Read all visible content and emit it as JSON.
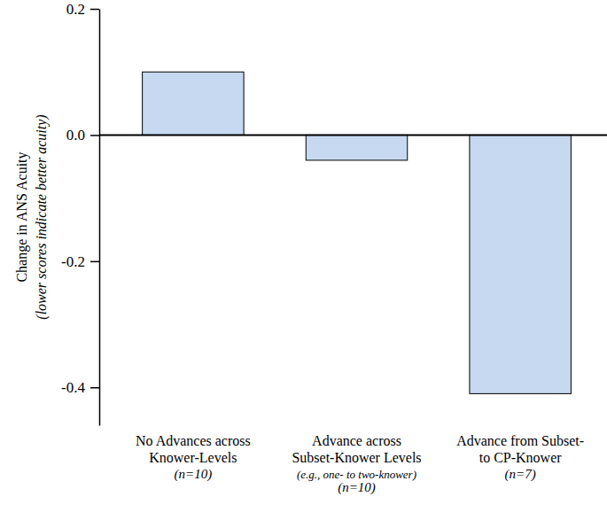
{
  "chart_data": {
    "type": "bar",
    "y_label": "Change in ANS Acuity\n(lower scores indicate better acuity)",
    "categories": [
      "No Advances across\nKnower-Levels",
      "Advance across\nSubset-Knower Levels",
      "Advance from Subset-\nto CP-Knower"
    ],
    "category_notes": [
      [
        "(n=10)"
      ],
      [
        "(e.g., one- to two-knower)",
        "(n=10)"
      ],
      [
        "(n=7)"
      ]
    ],
    "values": [
      0.1,
      -0.04,
      -0.41
    ],
    "color": "#c6d9f1",
    "ylim": [
      -0.46,
      0.2
    ],
    "yticks": [
      0.2,
      {
        "value": 0,
        "label": "0.0"
      },
      -0.2,
      -0.4
    ],
    "grid": false
  }
}
